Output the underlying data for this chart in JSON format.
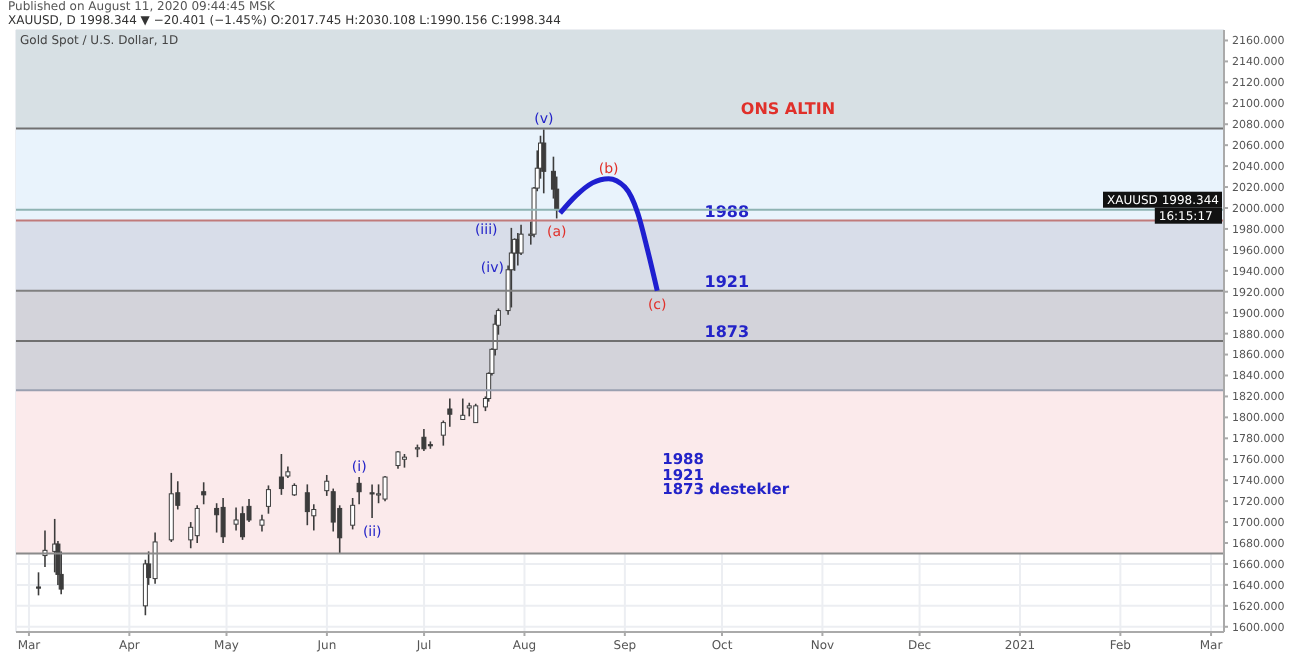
{
  "chart_data": {
    "type": "candlestick",
    "title": "Gold Spot / U.S. Dollar, 1D",
    "subtitle": "Published on August 11, 2020 09:44:45 MSK",
    "annotations": [
      "XAUUSD, D 1998.344 ▼ −20.401 (−1.45%) O:2017.745 H:2030.108 L:1990.156 C:1998.344",
      "ONS ALTIN",
      "1988\n1921\n1873 destekler",
      {
        "text": "(i)",
        "x": "2020-06-11",
        "y": 1743
      },
      {
        "text": "(ii)",
        "x": "2020-06-15",
        "y": 1704
      },
      {
        "text": "(iii)",
        "x": "2020-07-28",
        "y": 1981
      },
      {
        "text": "(iv)",
        "x": "2020-07-30",
        "y": 1945
      },
      {
        "text": "(v)",
        "x": "2020-08-07",
        "y": 2075
      },
      {
        "text": "(a)",
        "x": "2020-08-11",
        "y": 1990
      },
      {
        "text": "(b)",
        "x": "2020-08-27",
        "y": 2028
      },
      {
        "text": "(c)",
        "x": "2020-09-11",
        "y": 1921
      }
    ],
    "color": "#3c3c3c",
    "x": [
      "2020-03-04",
      "2020-03-06",
      "2020-03-09",
      "2020-03-10",
      "2020-03-11",
      "2020-04-06",
      "2020-04-07",
      "2020-04-09",
      "2020-04-14",
      "2020-04-16",
      "2020-04-20",
      "2020-04-22",
      "2020-04-24",
      "2020-04-28",
      "2020-04-30",
      "2020-05-04",
      "2020-05-06",
      "2020-05-08",
      "2020-05-12",
      "2020-05-14",
      "2020-05-18",
      "2020-05-20",
      "2020-05-22",
      "2020-05-26",
      "2020-05-28",
      "2020-06-01",
      "2020-06-03",
      "2020-06-05",
      "2020-06-09",
      "2020-06-11",
      "2020-06-15",
      "2020-06-17",
      "2020-06-19",
      "2020-06-23",
      "2020-06-25",
      "2020-06-29",
      "2020-07-01",
      "2020-07-03",
      "2020-07-07",
      "2020-07-09",
      "2020-07-13",
      "2020-07-15",
      "2020-07-17",
      "2020-07-20",
      "2020-07-21",
      "2020-07-22",
      "2020-07-23",
      "2020-07-24",
      "2020-07-27",
      "2020-07-28",
      "2020-07-29",
      "2020-07-30",
      "2020-07-31",
      "2020-08-03",
      "2020-08-04",
      "2020-08-05",
      "2020-08-06",
      "2020-08-07",
      "2020-08-10",
      "2020-08-11"
    ],
    "ohlc": [
      [
        1638,
        1652,
        1630,
        1637
      ],
      [
        1668,
        1692,
        1657,
        1673
      ],
      [
        1672,
        1703,
        1652,
        1679
      ],
      [
        1679,
        1682,
        1640,
        1650
      ],
      [
        1650,
        1672,
        1631,
        1636
      ],
      [
        1620,
        1664,
        1611,
        1660
      ],
      [
        1660,
        1672,
        1640,
        1647
      ],
      [
        1646,
        1690,
        1641,
        1681
      ],
      [
        1683,
        1747,
        1681,
        1727
      ],
      [
        1728,
        1739,
        1712,
        1716
      ],
      [
        1683,
        1700,
        1675,
        1695
      ],
      [
        1687,
        1716,
        1680,
        1713
      ],
      [
        1729,
        1738,
        1717,
        1726
      ],
      [
        1713,
        1718,
        1690,
        1707
      ],
      [
        1714,
        1723,
        1680,
        1686
      ],
      [
        1698,
        1714,
        1692,
        1702
      ],
      [
        1708,
        1715,
        1683,
        1686
      ],
      [
        1715,
        1722,
        1700,
        1702
      ],
      [
        1697,
        1707,
        1691,
        1702
      ],
      [
        1715,
        1735,
        1708,
        1731
      ],
      [
        1743,
        1765,
        1726,
        1732
      ],
      [
        1744,
        1753,
        1742,
        1748
      ],
      [
        1726,
        1737,
        1725,
        1735
      ],
      [
        1728,
        1736,
        1697,
        1710
      ],
      [
        1706,
        1717,
        1692,
        1712
      ],
      [
        1730,
        1745,
        1725,
        1739
      ],
      [
        1729,
        1732,
        1691,
        1700
      ],
      [
        1713,
        1716,
        1670,
        1685
      ],
      [
        1697,
        1723,
        1693,
        1716
      ],
      [
        1737,
        1743,
        1717,
        1729
      ],
      [
        1728,
        1736,
        1704,
        1727
      ],
      [
        1726,
        1736,
        1718,
        1727
      ],
      [
        1722,
        1744,
        1720,
        1743
      ],
      [
        1754,
        1768,
        1751,
        1767
      ],
      [
        1760,
        1765,
        1752,
        1762
      ],
      [
        1771,
        1774,
        1762,
        1771
      ],
      [
        1781,
        1789,
        1768,
        1770
      ],
      [
        1774,
        1777,
        1770,
        1773
      ],
      [
        1783,
        1797,
        1773,
        1795
      ],
      [
        1808,
        1818,
        1791,
        1803
      ],
      [
        1798,
        1818,
        1798,
        1802
      ],
      [
        1809,
        1814,
        1801,
        1811
      ],
      [
        1795,
        1813,
        1795,
        1811
      ],
      [
        1810,
        1820,
        1806,
        1818
      ],
      [
        1818,
        1843,
        1815,
        1842
      ],
      [
        1842,
        1866,
        1840,
        1865
      ],
      [
        1865,
        1898,
        1859,
        1889
      ],
      [
        1888,
        1904,
        1879,
        1902
      ],
      [
        1902,
        1945,
        1898,
        1941
      ],
      [
        1941,
        1981,
        1905,
        1957
      ],
      [
        1957,
        1971,
        1940,
        1970
      ],
      [
        1970,
        1976,
        1945,
        1957
      ],
      [
        1957,
        1984,
        1955,
        1975
      ],
      [
        1975,
        1987,
        1965,
        1975
      ],
      [
        1975,
        2020,
        1972,
        2019
      ],
      [
        2019,
        2055,
        2016,
        2038
      ],
      [
        2038,
        2069,
        2028,
        2062
      ],
      [
        2062,
        2075,
        2014,
        2035
      ],
      [
        2035,
        2049,
        2009,
        2018
      ],
      [
        2018,
        2030,
        1990,
        1998.344
      ]
    ],
    "series": [
      {
        "type": "line",
        "color": "#1f1fd0",
        "x": [
          "2020-08-12",
          "2020-08-17",
          "2020-08-22",
          "2020-08-27",
          "2020-09-01",
          "2020-09-05",
          "2020-09-08",
          "2020-09-11"
        ],
        "values": [
          1995,
          2012,
          2024,
          2028,
          2020,
          1995,
          1960,
          1921
        ]
      }
    ],
    "xlim": [
      "2020-02-26",
      "2021-03-05"
    ],
    "xticks": [
      {
        "value": "2020-03-01",
        "label": "Mar"
      },
      {
        "value": "2020-04-01",
        "label": "Apr"
      },
      {
        "value": "2020-05-01",
        "label": "May"
      },
      {
        "value": "2020-06-01",
        "label": "Jun"
      },
      {
        "value": "2020-07-01",
        "label": "Jul"
      },
      {
        "value": "2020-08-01",
        "label": "Aug"
      },
      {
        "value": "2020-09-01",
        "label": "Sep"
      },
      {
        "value": "2020-10-01",
        "label": "Oct"
      },
      {
        "value": "2020-11-01",
        "label": "Nov"
      },
      {
        "value": "2020-12-01",
        "label": "Dec"
      },
      {
        "value": "2021-01-01",
        "label": "2021"
      },
      {
        "value": "2021-02-01",
        "label": "Feb"
      },
      {
        "value": "2021-03-01",
        "label": "Mar"
      }
    ],
    "ylim": [
      1595,
      2170
    ],
    "yticks": [
      {
        "value": 1600,
        "label": "1600.000"
      },
      {
        "value": 1620,
        "label": "1620.000"
      },
      {
        "value": 1640,
        "label": "1640.000"
      },
      {
        "value": 1660,
        "label": "1660.000"
      },
      {
        "value": 1680,
        "label": "1680.000"
      },
      {
        "value": 1700,
        "label": "1700.000"
      },
      {
        "value": 1720,
        "label": "1720.000"
      },
      {
        "value": 1740,
        "label": "1740.000"
      },
      {
        "value": 1760,
        "label": "1760.000"
      },
      {
        "value": 1780,
        "label": "1780.000"
      },
      {
        "value": 1800,
        "label": "1800.000"
      },
      {
        "value": 1820,
        "label": "1820.000"
      },
      {
        "value": 1840,
        "label": "1840.000"
      },
      {
        "value": 1860,
        "label": "1860.000"
      },
      {
        "value": 1880,
        "label": "1880.000"
      },
      {
        "value": 1900,
        "label": "1900.000"
      },
      {
        "value": 1920,
        "label": "1920.000"
      },
      {
        "value": 1940,
        "label": "1940.000"
      },
      {
        "value": 1960,
        "label": "1960.000"
      },
      {
        "value": 1980,
        "label": "1980.000"
      },
      {
        "value": 2000,
        "label": "2000.000"
      },
      {
        "value": 2020,
        "label": "2020.000"
      },
      {
        "value": 2040,
        "label": "2040.000"
      },
      {
        "value": 2060,
        "label": "2060.000"
      },
      {
        "value": 2080,
        "label": "2080.000"
      },
      {
        "value": 2100,
        "label": "2100.000"
      },
      {
        "value": 2120,
        "label": "2120.000"
      },
      {
        "value": 2140,
        "label": "2140.000"
      },
      {
        "value": 2160,
        "label": "2160.000"
      }
    ],
    "bands": [
      {
        "axis": "y",
        "from": 2076,
        "to": 2170,
        "color": "#d7e0e4"
      },
      {
        "axis": "y",
        "from": 1988,
        "to": 2076,
        "color": "#e9f3fc"
      },
      {
        "axis": "y",
        "from": 1921,
        "to": 1988,
        "color": "#d8dde9"
      },
      {
        "axis": "y",
        "from": 1826,
        "to": 1921,
        "color": "#d3d3da"
      },
      {
        "axis": "y",
        "from": 1670,
        "to": 1826,
        "color": "#fbeaeb"
      }
    ],
    "ref_lines": [
      {
        "axis": "y",
        "value": 2076,
        "color": "#707070"
      },
      {
        "axis": "y",
        "value": 1988,
        "label": "1988",
        "color": "#c07a7a"
      },
      {
        "axis": "y",
        "value": 1921,
        "label": "1921",
        "color": "#808080"
      },
      {
        "axis": "y",
        "value": 1873,
        "label": "1873",
        "color": "#707070"
      },
      {
        "axis": "y",
        "value": 1826,
        "color": "#9aa0b0"
      },
      {
        "axis": "y",
        "value": 1670,
        "color": "#8a8a8a"
      },
      {
        "axis": "y",
        "value": 1998.344,
        "label": "XAUUSD 1998.344\n16:15:17",
        "color": "#8fb3b3"
      }
    ],
    "grid": true,
    "legend": false
  }
}
